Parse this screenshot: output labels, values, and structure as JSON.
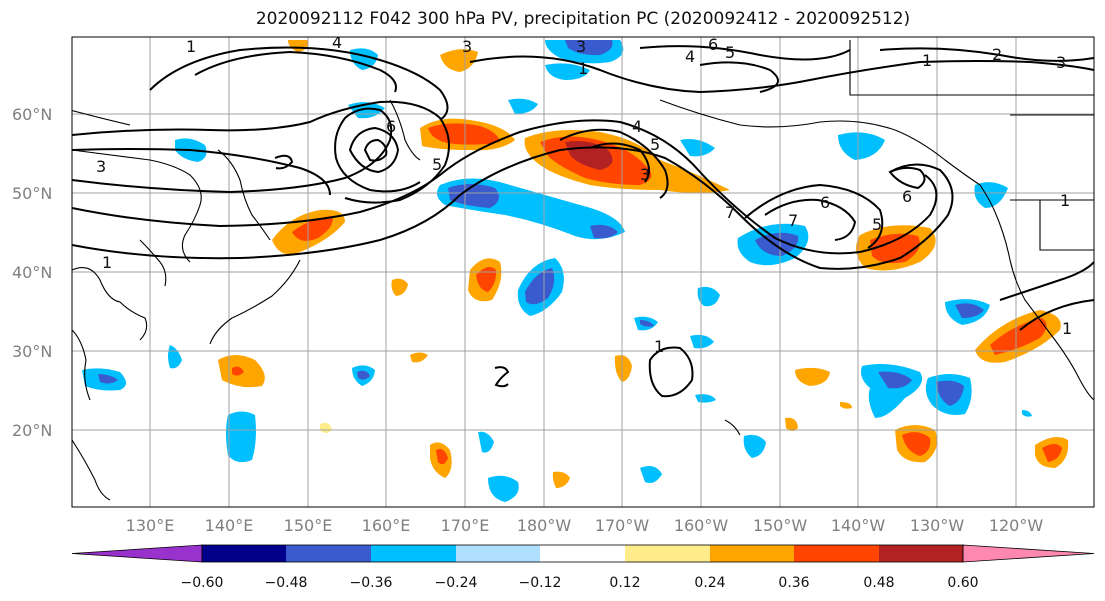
{
  "title": "2020092112 F042 300 hPa PV, precipitation PC (2020092412 - 2020092512)",
  "lat_labels": [
    "20°N",
    "30°N",
    "40°N",
    "50°N",
    "60°N"
  ],
  "lon_labels": [
    "130°E",
    "140°E",
    "150°E",
    "160°E",
    "170°E",
    "180°W",
    "170°W",
    "160°W",
    "150°W",
    "140°W",
    "130°W",
    "120°W"
  ],
  "colorbar": {
    "tick_labels": [
      "−0.60",
      "−0.48",
      "−0.36",
      "−0.24",
      "−0.12",
      "0.12",
      "0.24",
      "0.36",
      "0.48",
      "0.60"
    ],
    "colors": [
      "#9932cc",
      "#00008b",
      "#3a5bcd",
      "#00bfff",
      "#b0e0ff",
      "#ffffff",
      "#ffec8b",
      "#ffa500",
      "#ff4500",
      "#b22222",
      "#ff88b0"
    ]
  },
  "contour_levels": [
    "1",
    "2",
    "3",
    "4",
    "5",
    "6",
    "7"
  ],
  "map_data": {
    "lon_range": [
      "120°E",
      "110°W"
    ],
    "lat_range": [
      "10°N",
      "70°N"
    ],
    "fields": [
      "300 hPa PV (contours)",
      "precipitation PC (shaded)"
    ],
    "gridlines": true
  }
}
